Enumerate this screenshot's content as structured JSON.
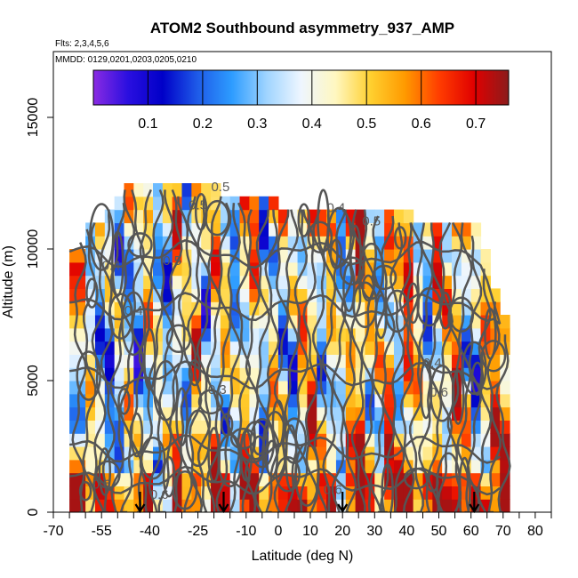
{
  "chart_data": {
    "type": "heatmap",
    "title": "ATOM2 Southbound asymmetry_937_AMP",
    "subtitle_flights": "Flts: 2,3,4,5,6",
    "subtitle_dates": "MMDD: 0129,0201,0203,0205,0210",
    "xlabel": "Latitude (deg N)",
    "ylabel": "Altitude (m)",
    "xlim": [
      -70,
      85
    ],
    "ylim": [
      0,
      17500
    ],
    "x_ticks_major": [
      -70,
      -55,
      -40,
      -25,
      -10,
      0,
      10,
      20,
      30,
      40,
      50,
      60,
      70,
      80
    ],
    "x_ticks_major_labels": [
      "-70",
      "-55",
      "-40",
      "-25",
      "-10",
      "0",
      "10",
      "20",
      "30",
      "40",
      "50",
      "60",
      "70",
      "80"
    ],
    "x_ticks_minor_step": 5,
    "y_ticks": [
      0,
      5000,
      10000,
      15000
    ],
    "y_tick_labels": [
      "0",
      "5000",
      "10000",
      "15000"
    ],
    "colorbar": {
      "range": [
        0.0,
        0.76
      ],
      "ticks": [
        0.1,
        0.2,
        0.3,
        0.4,
        0.5,
        0.6,
        0.7
      ],
      "tick_labels": [
        "0.1",
        "0.2",
        "0.3",
        "0.4",
        "0.5",
        "0.6",
        "0.7"
      ],
      "colors": [
        "#8a2be2",
        "#2a0fe0",
        "#0000c8",
        "#1e5ae8",
        "#2d9cff",
        "#9fd4ff",
        "#eef6ff",
        "#fff7c0",
        "#ffd030",
        "#ff9a00",
        "#ff3c00",
        "#e00000",
        "#8b1c1c"
      ]
    },
    "data_coverage": {
      "lat_range": [
        -65,
        72
      ],
      "alt_range_m": [
        0,
        12500
      ]
    },
    "contour_levels": [
      0.3,
      0.4,
      0.5,
      0.6
    ],
    "contour_labels": [
      {
        "text": "0.5",
        "lat": -33,
        "alt": 9400
      },
      {
        "text": "0.5",
        "lat": -25,
        "alt": 11500
      },
      {
        "text": "0.5",
        "lat": -18,
        "alt": 12200
      },
      {
        "text": "0.4",
        "lat": 18,
        "alt": 11400
      },
      {
        "text": "0.5",
        "lat": 29,
        "alt": 10900
      },
      {
        "text": "0.4",
        "lat": -52,
        "alt": 9200
      },
      {
        "text": "0.4",
        "lat": -45,
        "alt": 7500
      },
      {
        "text": "0.3",
        "lat": -19,
        "alt": 4500
      },
      {
        "text": "0.4",
        "lat": 48,
        "alt": 5500
      },
      {
        "text": "0.6",
        "lat": -55,
        "alt": 900
      },
      {
        "text": "0.6",
        "lat": -37,
        "alt": 500
      },
      {
        "text": "0.6",
        "lat": 17,
        "alt": 700
      },
      {
        "text": "0.6",
        "lat": 50,
        "alt": 4400
      }
    ],
    "arrows_lat": [
      -43,
      -17,
      20,
      61
    ],
    "grid_lat": [
      -65,
      -60,
      -57,
      -54,
      -51,
      -48,
      -45,
      -42,
      -39,
      -36,
      -33,
      -30,
      -27,
      -24,
      -21,
      -18,
      -15,
      -12,
      -9,
      -6,
      -3,
      0,
      3,
      6,
      9,
      12,
      15,
      18,
      21,
      24,
      27,
      30,
      33,
      36,
      39,
      42,
      45,
      48,
      51,
      54,
      57,
      60,
      63,
      66,
      69,
      72
    ],
    "grid_alt": [
      0,
      500,
      1000,
      1500,
      2000,
      2500,
      3000,
      3500,
      4000,
      4500,
      5000,
      5500,
      6000,
      6500,
      7000,
      7500,
      8000,
      8500,
      9000,
      9500,
      10000,
      10500,
      11000,
      11500,
      12000,
      12500
    ],
    "alt_top_by_lat": [
      {
        "lat": -65,
        "alt": 10000
      },
      {
        "lat": -57,
        "alt": 11000
      },
      {
        "lat": -45,
        "alt": 12500
      },
      {
        "lat": -18,
        "alt": 12000
      },
      {
        "lat": 0,
        "alt": 11500
      },
      {
        "lat": 30,
        "alt": 11500
      },
      {
        "lat": 40,
        "alt": 11000
      },
      {
        "lat": 60,
        "alt": 11000
      },
      {
        "lat": 72,
        "alt": 6000
      }
    ],
    "lat_means": [
      0.42,
      0.4,
      0.33,
      0.28,
      0.31,
      0.37,
      0.29,
      0.44,
      0.34,
      0.3,
      0.46,
      0.36,
      0.52,
      0.33,
      0.47,
      0.41,
      0.3,
      0.45,
      0.49,
      0.28,
      0.43,
      0.37,
      0.32,
      0.46,
      0.52,
      0.35,
      0.44,
      0.31,
      0.48,
      0.58,
      0.42,
      0.36,
      0.52,
      0.4,
      0.57,
      0.44,
      0.33,
      0.5,
      0.45,
      0.55,
      0.38,
      0.3,
      0.47,
      0.55,
      0.53,
      0.48
    ]
  }
}
